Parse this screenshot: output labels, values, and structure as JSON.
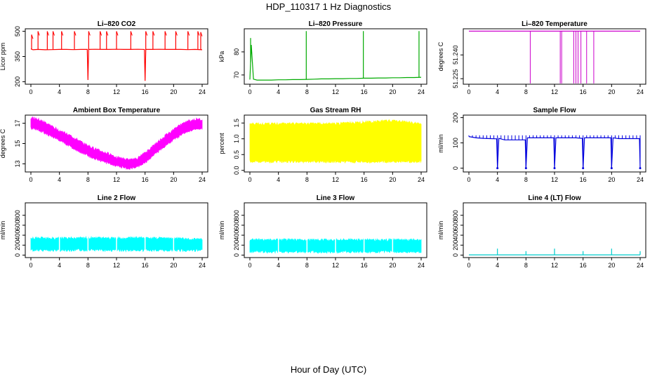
{
  "figure": {
    "title": "HDP_110317  1 Hz Diagnostics",
    "xlabel": "Hour of Day (UTC)"
  },
  "chart_data": [
    {
      "type": "line",
      "title": "Li–820 CO2",
      "ylabel": "Licor ppm",
      "color": "#ff0000",
      "xlim": [
        0,
        24
      ],
      "xticks": [
        "0",
        "4",
        "8",
        "12",
        "16",
        "20",
        "24"
      ],
      "ylim": [
        185,
        515
      ],
      "yticks": [
        200,
        350,
        500
      ],
      "ytick_labels": [
        "200",
        "350",
        "500"
      ],
      "series": [
        {
          "x": [
            0,
            0.3,
            1,
            2,
            3,
            4,
            5,
            6,
            7,
            7.9,
            8,
            8.1,
            9,
            10,
            11,
            12,
            13,
            14,
            15,
            15.9,
            16,
            16.1,
            17,
            18,
            19,
            20,
            21,
            22,
            23,
            24
          ],
          "y": [
            395,
            390,
            392,
            390,
            391,
            392,
            392,
            391,
            392,
            392,
            210,
            392,
            393,
            392,
            392,
            393,
            392,
            392,
            393,
            392,
            205,
            392,
            392,
            393,
            392,
            392,
            392,
            391,
            392,
            390
          ]
        }
      ],
      "spikes": [
        {
          "x": 0.1,
          "y": 480
        },
        {
          "x": 1.0,
          "y": 500
        },
        {
          "x": 2.3,
          "y": 500
        },
        {
          "x": 3.1,
          "y": 500
        },
        {
          "x": 4.3,
          "y": 500
        },
        {
          "x": 6.1,
          "y": 500
        },
        {
          "x": 8.1,
          "y": 500
        },
        {
          "x": 9.7,
          "y": 500
        },
        {
          "x": 10.6,
          "y": 500
        },
        {
          "x": 12.0,
          "y": 500
        },
        {
          "x": 14.0,
          "y": 500
        },
        {
          "x": 16.1,
          "y": 500
        },
        {
          "x": 17.1,
          "y": 500
        },
        {
          "x": 18.8,
          "y": 500
        },
        {
          "x": 20.3,
          "y": 500
        },
        {
          "x": 22.0,
          "y": 500
        },
        {
          "x": 23.4,
          "y": 500
        },
        {
          "x": 23.8,
          "y": 495
        }
      ]
    },
    {
      "type": "line",
      "title": "Li–820 Pressure",
      "ylabel": "kPa",
      "color": "#00aa00",
      "xlim": [
        0,
        24
      ],
      "xticks": [
        "0",
        "4",
        "8",
        "12",
        "16",
        "20",
        "24"
      ],
      "ylim": [
        66,
        90
      ],
      "yticks": [
        70,
        80
      ],
      "ytick_labels": [
        "70",
        "80"
      ],
      "series": [
        {
          "x": [
            0,
            0.2,
            0.5,
            1,
            2,
            3,
            4,
            5,
            6,
            7,
            8,
            9,
            10,
            11,
            12,
            13,
            14,
            15,
            16,
            17,
            18,
            19,
            20,
            21,
            22,
            23,
            24
          ],
          "y": [
            68,
            83,
            68.2,
            67.8,
            67.8,
            67.8,
            67.9,
            67.9,
            68,
            68,
            68.1,
            68.2,
            68.3,
            68.3,
            68.4,
            68.4,
            68.5,
            68.5,
            68.6,
            68.6,
            68.7,
            68.7,
            68.8,
            68.8,
            68.9,
            68.9,
            69
          ]
        }
      ],
      "spikes": [
        {
          "x": 0.1,
          "y": 86
        },
        {
          "x": 7.9,
          "y": 89
        },
        {
          "x": 15.9,
          "y": 89
        },
        {
          "x": 23.7,
          "y": 89
        }
      ]
    },
    {
      "type": "line",
      "title": "Li–820 Temperature",
      "ylabel": "degrees C",
      "color": "#cc00cc",
      "xlim": [
        0,
        24
      ],
      "xticks": [
        "0",
        "4",
        "8",
        "12",
        "16",
        "20",
        "24"
      ],
      "ylim": [
        51.2215,
        51.2565
      ],
      "yticks": [
        51.225,
        51.24
      ],
      "ytick_labels": [
        "51.225",
        "51.240"
      ],
      "series": [
        {
          "x": [
            0,
            24
          ],
          "y": [
            51.255,
            51.255
          ]
        }
      ],
      "drops": [
        8.6,
        12.8,
        13.0,
        14.7,
        15.0,
        15.3,
        15.7,
        16.5,
        17.5
      ]
    },
    {
      "type": "area",
      "title": "Ambient Box Temperature",
      "ylabel": "degrees C",
      "color": "#ff00ff",
      "xlim": [
        0,
        24
      ],
      "xticks": [
        "0",
        "4",
        "8",
        "12",
        "16",
        "20",
        "24"
      ],
      "ylim": [
        12.2,
        17.8
      ],
      "yticks": [
        13,
        15,
        17
      ],
      "ytick_labels": [
        "13",
        "15",
        "17"
      ],
      "series": [
        {
          "x": [
            0,
            1,
            2,
            3,
            4,
            5,
            6,
            7,
            8,
            9,
            10,
            11,
            12,
            13,
            14,
            15,
            16,
            17,
            18,
            19,
            20,
            21,
            22,
            23,
            24
          ],
          "upper": [
            17.5,
            17.3,
            17.0,
            16.6,
            16.2,
            15.9,
            15.5,
            15.1,
            14.7,
            14.4,
            14.1,
            13.9,
            13.6,
            13.4,
            13.3,
            13.5,
            14.0,
            14.6,
            15.2,
            15.8,
            16.3,
            16.8,
            17.1,
            17.3,
            17.3
          ],
          "lower": [
            16.6,
            16.4,
            16.1,
            15.8,
            15.4,
            15.0,
            14.6,
            14.2,
            13.9,
            13.6,
            13.3,
            13.1,
            12.9,
            12.7,
            12.6,
            12.8,
            13.2,
            13.8,
            14.4,
            14.9,
            15.4,
            15.9,
            16.3,
            16.5,
            16.5
          ]
        }
      ]
    },
    {
      "type": "area",
      "title": "Gas Stream RH",
      "ylabel": "percent",
      "color": "#ffff00",
      "xlim": [
        0,
        24
      ],
      "xticks": [
        "0",
        "4",
        "8",
        "12",
        "16",
        "20",
        "24"
      ],
      "ylim": [
        -0.05,
        1.75
      ],
      "yticks": [
        0,
        0.5,
        1.0,
        1.5
      ],
      "ytick_labels": [
        "0.0",
        "0.5",
        "1.0",
        "1.5"
      ],
      "series": [
        {
          "x": [
            0,
            4,
            8,
            12,
            16,
            20,
            24
          ],
          "upper": [
            1.45,
            1.45,
            1.45,
            1.45,
            1.5,
            1.55,
            1.45
          ],
          "lower": [
            0.3,
            0.3,
            0.3,
            0.3,
            0.3,
            0.3,
            0.3
          ]
        }
      ]
    },
    {
      "type": "line",
      "title": "Sample Flow",
      "ylabel": "ml/min",
      "color": "#0000dd",
      "xlim": [
        0,
        24
      ],
      "xticks": [
        "0",
        "4",
        "8",
        "12",
        "16",
        "20",
        "24"
      ],
      "ylim": [
        -15,
        210
      ],
      "yticks": [
        0,
        100,
        200
      ],
      "ytick_labels": [
        "0",
        "100",
        "200"
      ],
      "series": [
        {
          "x": [
            0,
            1,
            2,
            3,
            3.9,
            4,
            4.2,
            5,
            6,
            7,
            7.9,
            8,
            8.2,
            9,
            10,
            11,
            11.9,
            12,
            12.2,
            13,
            14,
            15,
            15.9,
            16,
            16.2,
            17,
            18,
            19,
            19.9,
            20,
            20.2,
            21,
            22,
            23,
            23.9,
            24
          ],
          "y": [
            125,
            120,
            118,
            117,
            116,
            0,
            118,
            112,
            112,
            112,
            112,
            0,
            120,
            120,
            120,
            120,
            120,
            0,
            120,
            120,
            120,
            120,
            118,
            0,
            120,
            120,
            120,
            120,
            120,
            0,
            120,
            117,
            117,
            117,
            117,
            0
          ]
        }
      ],
      "tick_marks_step": 0.5,
      "tick_marks_top": 130
    },
    {
      "type": "area",
      "title": "Line 2 Flow",
      "ylabel": "ml/min",
      "color": "#00ffff",
      "xlim": [
        0,
        24
      ],
      "xticks": [
        "0",
        "4",
        "8",
        "12",
        "16",
        "20",
        "24"
      ],
      "ylim": [
        -50,
        1050
      ],
      "yticks": [
        0,
        200,
        400,
        600,
        800
      ],
      "ytick_labels": [
        "0",
        "200",
        "400",
        "600",
        "800"
      ],
      "series": [
        {
          "x": [
            0,
            4,
            8,
            12,
            16,
            20,
            24
          ],
          "upper": [
            330,
            320,
            330,
            320,
            330,
            320,
            300
          ],
          "lower": [
            120,
            110,
            120,
            110,
            110,
            110,
            110
          ]
        }
      ],
      "gaps": [
        4,
        8,
        12,
        16,
        20
      ]
    },
    {
      "type": "area",
      "title": "Line 3 Flow",
      "ylabel": "ml/min",
      "color": "#00ffff",
      "xlim": [
        0,
        24
      ],
      "xticks": [
        "0",
        "4",
        "8",
        "12",
        "16",
        "20",
        "24"
      ],
      "ylim": [
        -50,
        1050
      ],
      "yticks": [
        0,
        200,
        400,
        600,
        800
      ],
      "ytick_labels": [
        "0",
        "200",
        "400",
        "600",
        "800"
      ],
      "series": [
        {
          "x": [
            0,
            4,
            8,
            12,
            16,
            20,
            24
          ],
          "upper": [
            290,
            290,
            290,
            290,
            290,
            290,
            290
          ],
          "lower": [
            80,
            80,
            80,
            80,
            80,
            80,
            80
          ]
        }
      ],
      "gaps": [
        4,
        8,
        12,
        16,
        20
      ]
    },
    {
      "type": "line",
      "title": "Line 4 (LT) Flow",
      "ylabel": "ml/min",
      "color": "#00cccc",
      "xlim": [
        0,
        24
      ],
      "xticks": [
        "0",
        "4",
        "8",
        "12",
        "16",
        "20",
        "24"
      ],
      "ylim": [
        -50,
        1050
      ],
      "yticks": [
        0,
        200,
        400,
        600,
        800
      ],
      "ytick_labels": [
        "0",
        "200",
        "400",
        "600",
        "800"
      ],
      "series": [
        {
          "x": [
            0,
            24
          ],
          "y": [
            5,
            5
          ]
        }
      ],
      "spikes": [
        {
          "x": 4,
          "y": 130
        },
        {
          "x": 8,
          "y": 80
        },
        {
          "x": 12,
          "y": 130
        },
        {
          "x": 16,
          "y": 80
        },
        {
          "x": 20,
          "y": 130
        },
        {
          "x": 24,
          "y": 80
        }
      ]
    }
  ]
}
